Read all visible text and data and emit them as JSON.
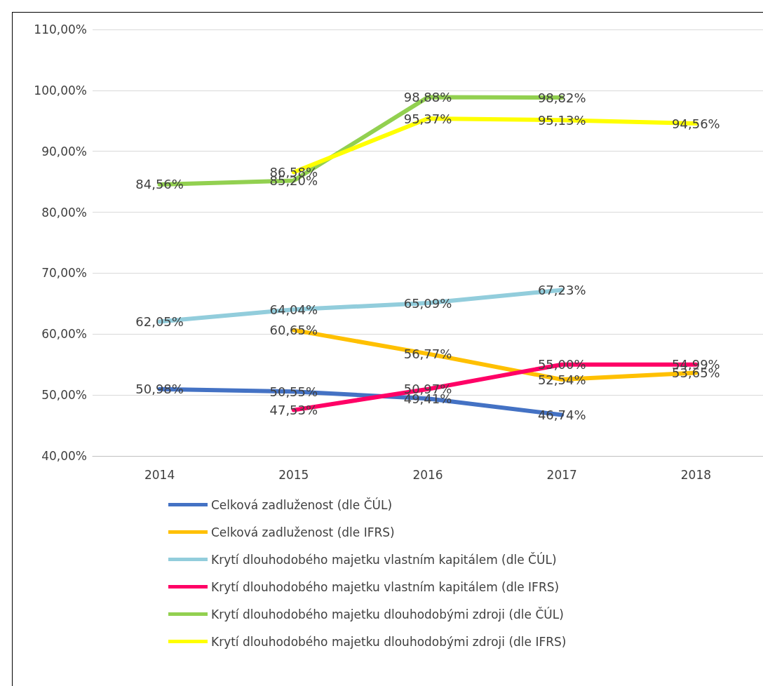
{
  "chart_data": {
    "type": "line",
    "categories": [
      "2014",
      "2015",
      "2016",
      "2017",
      "2018"
    ],
    "series": [
      {
        "name": "Celková zadluženost (dle ČÚL)",
        "color": "#4472c4",
        "values": [
          50.98,
          50.55,
          49.41,
          46.74,
          null
        ],
        "value_labels": [
          "50,98%",
          "50,55%",
          "49,41%",
          "46,74%",
          null
        ]
      },
      {
        "name": "Celková zadluženost (dle IFRS)",
        "color": "#ffc000",
        "values": [
          null,
          60.65,
          56.77,
          52.54,
          53.65
        ],
        "value_labels": [
          null,
          "60,65%",
          "56,77%",
          "52,54%",
          "53,65%"
        ]
      },
      {
        "name": "Krytí dlouhodobého majetku vlastním kapitálem (dle ČÚL)",
        "color": "#92cddc",
        "values": [
          62.05,
          64.04,
          65.09,
          67.23,
          null
        ],
        "value_labels": [
          "62,05%",
          "64,04%",
          "65,09%",
          "67,23%",
          null
        ]
      },
      {
        "name": "Krytí dlouhodobého majetku vlastním kapitálem (dle IFRS)",
        "color": "#ff0066",
        "values": [
          null,
          47.53,
          50.97,
          55.0,
          54.99
        ],
        "value_labels": [
          null,
          "47,53%",
          "50,97%",
          "55,00%",
          "54,99%"
        ]
      },
      {
        "name": "Krytí dlouhodobého majetku dlouhodobými zdroji (dle ČÚL)",
        "color": "#92d050",
        "values": [
          84.56,
          85.2,
          98.88,
          98.82,
          null
        ],
        "value_labels": [
          "84,56%",
          "85,20%",
          "98,88%",
          "98,82%",
          null
        ]
      },
      {
        "name": "Krytí dlouhodobého majetku dlouhodobými zdroji (dle IFRS)",
        "color": "#ffff00",
        "values": [
          null,
          86.58,
          95.37,
          95.13,
          94.56
        ],
        "value_labels": [
          null,
          "86,58%",
          "95,37%",
          "95,13%",
          "94,56%"
        ]
      }
    ],
    "ylim": [
      40,
      110
    ],
    "yticks": [
      {
        "value": 40,
        "label": "40,00%"
      },
      {
        "value": 50,
        "label": "50,00%"
      },
      {
        "value": 60,
        "label": "60,00%"
      },
      {
        "value": 70,
        "label": "70,00%"
      },
      {
        "value": 80,
        "label": "80,00%"
      },
      {
        "value": 90,
        "label": "90,00%"
      },
      {
        "value": 100,
        "label": "100,00%"
      },
      {
        "value": 110,
        "label": "110,00%"
      }
    ],
    "grid": "y",
    "legend": "bottom",
    "marker": "none",
    "line_style": "solid"
  }
}
